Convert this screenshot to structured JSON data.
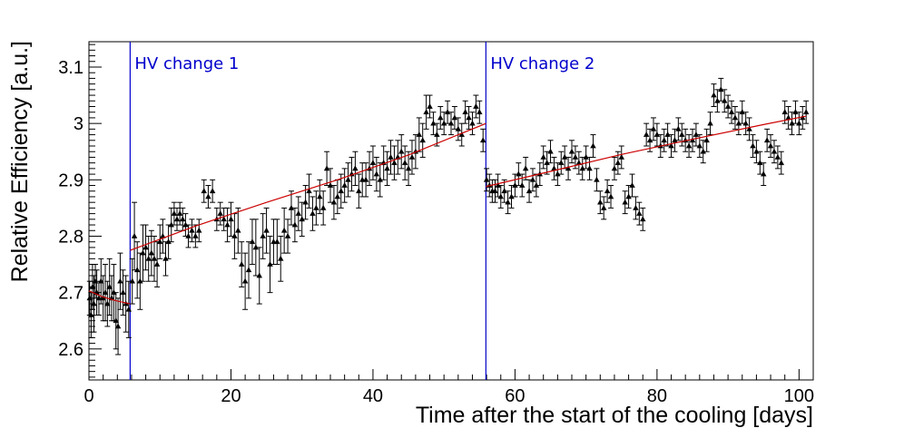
{
  "chart_data": {
    "type": "scatter",
    "title": "",
    "xlabel": "Time after the start of the cooling [days]",
    "ylabel": "Relative Efficiency [a.u.]",
    "xlim": [
      0,
      102
    ],
    "ylim": [
      2.545,
      3.145
    ],
    "xticks": [
      0,
      20,
      40,
      60,
      80,
      100
    ],
    "yticks": [
      2.6,
      2.7,
      2.8,
      2.9,
      3.0,
      3.1
    ],
    "xtick_labels": [
      "0",
      "20",
      "40",
      "60",
      "80",
      "100"
    ],
    "ytick_labels": [
      "2.6",
      "2.7",
      "2.8",
      "2.9",
      "3",
      "3.1"
    ],
    "legend": "none",
    "grid": false,
    "colors": {
      "points": "#000000",
      "fit": "#cc0000",
      "hv_lines": "#0000cc",
      "frame": "#000000"
    },
    "annotations": [
      {
        "x": 5.8,
        "label": "HV change 1"
      },
      {
        "x": 55.9,
        "label": "HV change 2"
      }
    ],
    "fits": [
      {
        "x": [
          0.0,
          2.0,
          4.0,
          5.8
        ],
        "y": [
          2.703,
          2.692,
          2.685,
          2.68
        ]
      },
      {
        "x": [
          5.8,
          15.0,
          25.0,
          35.0,
          45.0,
          55.9
        ],
        "y": [
          2.775,
          2.818,
          2.86,
          2.9,
          2.944,
          3.0
        ]
      },
      {
        "x": [
          55.9,
          65.0,
          75.0,
          85.0,
          95.0,
          101.0
        ],
        "y": [
          2.888,
          2.915,
          2.945,
          2.972,
          2.998,
          3.013
        ]
      }
    ],
    "series": [
      {
        "name": "efficiency",
        "marker": "triangle",
        "points": [
          [
            0.1,
            2.69,
            0.03
          ],
          [
            0.3,
            2.66,
            0.04
          ],
          [
            0.5,
            2.71,
            0.04
          ],
          [
            0.7,
            2.68,
            0.05
          ],
          [
            0.9,
            2.72,
            0.03
          ],
          [
            1.1,
            2.7,
            0.04
          ],
          [
            1.4,
            2.69,
            0.03
          ],
          [
            1.7,
            2.72,
            0.04
          ],
          [
            2.0,
            2.69,
            0.04
          ],
          [
            2.3,
            2.7,
            0.05
          ],
          [
            2.6,
            2.68,
            0.04
          ],
          [
            2.9,
            2.71,
            0.05
          ],
          [
            3.2,
            2.69,
            0.04
          ],
          [
            3.5,
            2.7,
            0.05
          ],
          [
            3.8,
            2.65,
            0.05
          ],
          [
            4.1,
            2.64,
            0.05
          ],
          [
            4.4,
            2.72,
            0.05
          ],
          [
            4.8,
            2.7,
            0.04
          ],
          [
            5.2,
            2.68,
            0.05
          ],
          [
            5.6,
            2.67,
            0.05
          ],
          [
            6.1,
            2.72,
            0.04
          ],
          [
            6.4,
            2.8,
            0.06
          ],
          [
            6.8,
            2.74,
            0.05
          ],
          [
            7.2,
            2.72,
            0.05
          ],
          [
            7.6,
            2.77,
            0.05
          ],
          [
            8.0,
            2.78,
            0.04
          ],
          [
            8.4,
            2.76,
            0.04
          ],
          [
            8.8,
            2.77,
            0.04
          ],
          [
            9.2,
            2.76,
            0.04
          ],
          [
            9.6,
            2.75,
            0.04
          ],
          [
            10.0,
            2.79,
            0.03
          ],
          [
            10.4,
            2.8,
            0.03
          ],
          [
            10.8,
            2.76,
            0.03
          ],
          [
            11.2,
            2.79,
            0.03
          ],
          [
            11.6,
            2.82,
            0.03
          ],
          [
            12.0,
            2.84,
            0.02
          ],
          [
            12.4,
            2.83,
            0.02
          ],
          [
            12.8,
            2.84,
            0.02
          ],
          [
            13.2,
            2.83,
            0.02
          ],
          [
            13.6,
            2.82,
            0.02
          ],
          [
            14.0,
            2.8,
            0.02
          ],
          [
            14.5,
            2.81,
            0.02
          ],
          [
            15.0,
            2.8,
            0.02
          ],
          [
            15.5,
            2.81,
            0.02
          ],
          [
            16.2,
            2.88,
            0.02
          ],
          [
            16.8,
            2.87,
            0.02
          ],
          [
            17.4,
            2.88,
            0.02
          ],
          [
            18.0,
            2.83,
            0.02
          ],
          [
            18.5,
            2.84,
            0.02
          ],
          [
            19.0,
            2.83,
            0.02
          ],
          [
            19.5,
            2.82,
            0.03
          ],
          [
            20.0,
            2.83,
            0.03
          ],
          [
            20.5,
            2.8,
            0.04
          ],
          [
            21.0,
            2.81,
            0.04
          ],
          [
            21.5,
            2.75,
            0.04
          ],
          [
            22.0,
            2.72,
            0.05
          ],
          [
            22.5,
            2.74,
            0.05
          ],
          [
            23.0,
            2.79,
            0.04
          ],
          [
            23.5,
            2.78,
            0.05
          ],
          [
            24.0,
            2.73,
            0.05
          ],
          [
            24.5,
            2.8,
            0.04
          ],
          [
            25.0,
            2.81,
            0.04
          ],
          [
            25.5,
            2.75,
            0.05
          ],
          [
            26.0,
            2.79,
            0.04
          ],
          [
            26.5,
            2.79,
            0.04
          ],
          [
            27.0,
            2.76,
            0.04
          ],
          [
            27.5,
            2.81,
            0.04
          ],
          [
            28.0,
            2.8,
            0.03
          ],
          [
            28.5,
            2.85,
            0.03
          ],
          [
            29.0,
            2.82,
            0.03
          ],
          [
            29.5,
            2.84,
            0.03
          ],
          [
            30.0,
            2.83,
            0.03
          ],
          [
            30.5,
            2.86,
            0.03
          ],
          [
            31.0,
            2.88,
            0.03
          ],
          [
            31.5,
            2.84,
            0.03
          ],
          [
            32.0,
            2.85,
            0.03
          ],
          [
            32.5,
            2.87,
            0.03
          ],
          [
            33.0,
            2.85,
            0.03
          ],
          [
            33.5,
            2.92,
            0.03
          ],
          [
            34.0,
            2.89,
            0.03
          ],
          [
            34.5,
            2.86,
            0.03
          ],
          [
            35.0,
            2.87,
            0.03
          ],
          [
            35.5,
            2.88,
            0.03
          ],
          [
            36.0,
            2.89,
            0.03
          ],
          [
            36.5,
            2.9,
            0.03
          ],
          [
            37.0,
            2.91,
            0.03
          ],
          [
            37.5,
            2.92,
            0.03
          ],
          [
            38.0,
            2.88,
            0.03
          ],
          [
            38.5,
            2.9,
            0.03
          ],
          [
            39.0,
            2.9,
            0.03
          ],
          [
            39.5,
            2.92,
            0.03
          ],
          [
            40.0,
            2.93,
            0.03
          ],
          [
            40.5,
            2.91,
            0.03
          ],
          [
            41.0,
            2.9,
            0.03
          ],
          [
            41.5,
            2.93,
            0.03
          ],
          [
            42.0,
            2.92,
            0.03
          ],
          [
            42.5,
            2.94,
            0.03
          ],
          [
            43.0,
            2.93,
            0.03
          ],
          [
            43.5,
            2.94,
            0.03
          ],
          [
            44.0,
            2.95,
            0.03
          ],
          [
            44.5,
            2.93,
            0.03
          ],
          [
            45.0,
            2.92,
            0.03
          ],
          [
            45.5,
            2.94,
            0.03
          ],
          [
            46.0,
            2.95,
            0.03
          ],
          [
            46.5,
            2.98,
            0.03
          ],
          [
            47.0,
            2.97,
            0.03
          ],
          [
            47.5,
            3.02,
            0.03
          ],
          [
            48.0,
            3.03,
            0.02
          ],
          [
            48.5,
            3.0,
            0.02
          ],
          [
            49.0,
            2.98,
            0.02
          ],
          [
            49.5,
            3.01,
            0.02
          ],
          [
            50.0,
            3.0,
            0.02
          ],
          [
            50.5,
            3.02,
            0.02
          ],
          [
            51.0,
            3.0,
            0.02
          ],
          [
            51.5,
            3.01,
            0.02
          ],
          [
            52.0,
            2.99,
            0.02
          ],
          [
            52.5,
            2.98,
            0.02
          ],
          [
            53.0,
            3.02,
            0.02
          ],
          [
            53.5,
            3.01,
            0.02
          ],
          [
            54.0,
            3.0,
            0.02
          ],
          [
            54.5,
            3.03,
            0.02
          ],
          [
            55.0,
            3.02,
            0.02
          ],
          [
            55.5,
            2.97,
            0.02
          ],
          [
            56.0,
            2.9,
            0.02
          ],
          [
            56.4,
            2.89,
            0.02
          ],
          [
            56.8,
            2.88,
            0.02
          ],
          [
            57.2,
            2.88,
            0.02
          ],
          [
            57.6,
            2.89,
            0.02
          ],
          [
            58.0,
            2.87,
            0.02
          ],
          [
            58.5,
            2.88,
            0.02
          ],
          [
            59.0,
            2.86,
            0.02
          ],
          [
            59.5,
            2.87,
            0.02
          ],
          [
            60.0,
            2.89,
            0.02
          ],
          [
            60.5,
            2.91,
            0.02
          ],
          [
            61.0,
            2.89,
            0.02
          ],
          [
            61.5,
            2.92,
            0.02
          ],
          [
            62.0,
            2.88,
            0.02
          ],
          [
            62.5,
            2.9,
            0.02
          ],
          [
            63.0,
            2.89,
            0.02
          ],
          [
            63.5,
            2.91,
            0.02
          ],
          [
            64.0,
            2.94,
            0.02
          ],
          [
            64.5,
            2.93,
            0.02
          ],
          [
            65.0,
            2.95,
            0.02
          ],
          [
            65.5,
            2.92,
            0.02
          ],
          [
            66.0,
            2.91,
            0.02
          ],
          [
            66.5,
            2.93,
            0.02
          ],
          [
            67.0,
            2.94,
            0.02
          ],
          [
            67.5,
            2.92,
            0.02
          ],
          [
            68.0,
            2.95,
            0.02
          ],
          [
            68.5,
            2.94,
            0.02
          ],
          [
            69.0,
            2.93,
            0.02
          ],
          [
            69.5,
            2.92,
            0.02
          ],
          [
            70.0,
            2.94,
            0.02
          ],
          [
            70.5,
            2.92,
            0.02
          ],
          [
            71.0,
            2.96,
            0.02
          ],
          [
            71.5,
            2.9,
            0.02
          ],
          [
            72.0,
            2.86,
            0.02
          ],
          [
            72.5,
            2.85,
            0.02
          ],
          [
            73.0,
            2.88,
            0.02
          ],
          [
            73.5,
            2.87,
            0.02
          ],
          [
            74.0,
            2.92,
            0.02
          ],
          [
            74.5,
            2.93,
            0.02
          ],
          [
            75.0,
            2.94,
            0.02
          ],
          [
            75.5,
            2.86,
            0.02
          ],
          [
            76.0,
            2.87,
            0.02
          ],
          [
            76.5,
            2.89,
            0.02
          ],
          [
            77.0,
            2.85,
            0.02
          ],
          [
            77.5,
            2.84,
            0.02
          ],
          [
            78.0,
            2.83,
            0.02
          ],
          [
            78.5,
            2.98,
            0.02
          ],
          [
            79.0,
            2.97,
            0.02
          ],
          [
            79.5,
            2.99,
            0.02
          ],
          [
            80.0,
            2.98,
            0.02
          ],
          [
            80.5,
            2.96,
            0.02
          ],
          [
            81.0,
            2.97,
            0.02
          ],
          [
            81.5,
            2.98,
            0.02
          ],
          [
            82.0,
            2.96,
            0.02
          ],
          [
            82.5,
            2.97,
            0.02
          ],
          [
            83.0,
            2.99,
            0.02
          ],
          [
            83.5,
            2.98,
            0.02
          ],
          [
            84.0,
            2.97,
            0.02
          ],
          [
            84.5,
            2.96,
            0.02
          ],
          [
            85.0,
            2.97,
            0.02
          ],
          [
            85.5,
            2.98,
            0.02
          ],
          [
            86.0,
            2.96,
            0.02
          ],
          [
            86.5,
            2.95,
            0.02
          ],
          [
            87.0,
            2.97,
            0.02
          ],
          [
            87.5,
            3.0,
            0.02
          ],
          [
            88.0,
            3.05,
            0.02
          ],
          [
            88.5,
            3.04,
            0.02
          ],
          [
            89.0,
            3.06,
            0.02
          ],
          [
            89.5,
            3.04,
            0.02
          ],
          [
            90.0,
            3.03,
            0.02
          ],
          [
            90.5,
            3.02,
            0.02
          ],
          [
            91.0,
            3.01,
            0.02
          ],
          [
            91.5,
            3.0,
            0.02
          ],
          [
            92.0,
            3.02,
            0.02
          ],
          [
            92.5,
            3.0,
            0.02
          ],
          [
            93.0,
            2.99,
            0.02
          ],
          [
            93.5,
            2.96,
            0.02
          ],
          [
            94.0,
            2.95,
            0.02
          ],
          [
            94.5,
            2.93,
            0.02
          ],
          [
            95.0,
            2.91,
            0.02
          ],
          [
            95.5,
            2.97,
            0.02
          ],
          [
            96.0,
            2.96,
            0.02
          ],
          [
            96.5,
            2.95,
            0.02
          ],
          [
            97.0,
            2.94,
            0.02
          ],
          [
            97.5,
            2.93,
            0.02
          ],
          [
            98.0,
            3.02,
            0.02
          ],
          [
            98.5,
            3.01,
            0.02
          ],
          [
            99.0,
            3.0,
            0.02
          ],
          [
            99.5,
            3.02,
            0.02
          ],
          [
            100.0,
            3.0,
            0.02
          ],
          [
            100.5,
            3.01,
            0.02
          ],
          [
            101.0,
            3.02,
            0.02
          ]
        ]
      }
    ]
  }
}
